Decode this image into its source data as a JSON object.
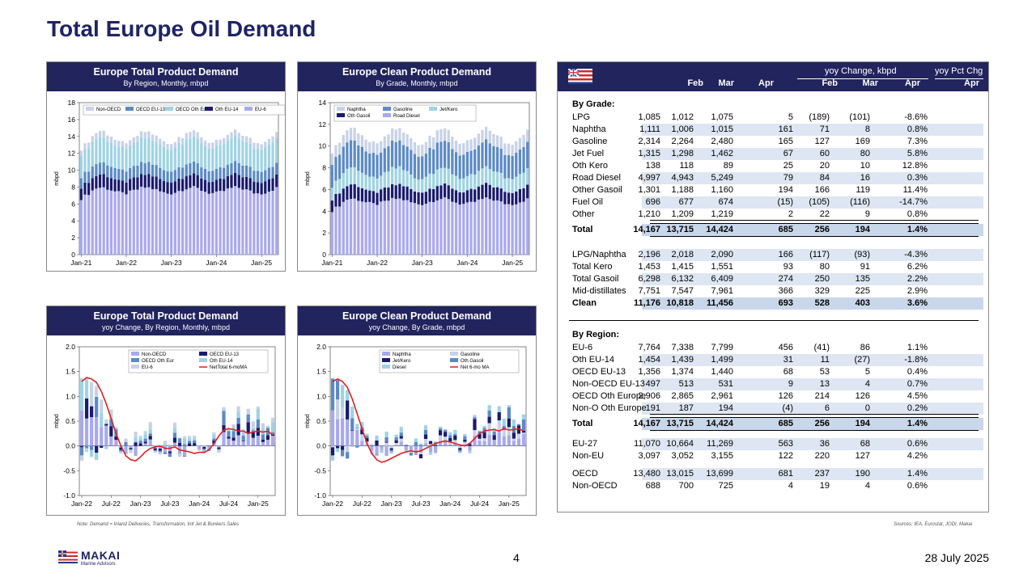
{
  "title": "Total Europe Oil Demand",
  "colors": {
    "navy": "#22245e",
    "red": "#e02020"
  },
  "charts": [
    {
      "id": "c1",
      "header": "Europe Total Product Demand",
      "subheader": "By Region, Monthly, mbpd",
      "chart_data": {
        "type": "bar",
        "stacked": true,
        "ylabel": "mbpd",
        "ylim": [
          0,
          18
        ],
        "yticks": [
          0,
          2,
          4,
          6,
          8,
          10,
          12,
          14,
          16,
          18
        ],
        "xticks": [
          "Jan-21",
          "Jan-22",
          "Jan-23",
          "Jan-24",
          "Jan-25"
        ],
        "n_months": 53,
        "legend": [
          "Non-OECD",
          "OECD EU-13",
          "OECD Oth Eur",
          "Oth EU-14",
          "EU-6"
        ],
        "series": [
          {
            "name": "EU-6",
            "color": "#a9a9ef",
            "base": 7.6,
            "amp": 0.35
          },
          {
            "name": "Oth EU-14",
            "color": "#1a1a6e",
            "base": 1.45,
            "amp": 0.08
          },
          {
            "name": "OECD EU-13",
            "color": "#5b8ac6",
            "base": 1.35,
            "amp": 0.06
          },
          {
            "name": "OECD Oth Eur",
            "color": "#9fd3e3",
            "base": 2.8,
            "amp": 0.15
          },
          {
            "name": "Non-OECD",
            "color": "#c7d2e8",
            "base": 0.7,
            "amp": 0.05
          }
        ]
      }
    },
    {
      "id": "c2",
      "header": "Europe Clean Product Demand",
      "subheader": "By Grade, Monthly, mbpd",
      "chart_data": {
        "type": "bar",
        "stacked": true,
        "ylabel": "mbpd",
        "ylim": [
          0,
          14
        ],
        "yticks": [
          0,
          2,
          4,
          6,
          8,
          10,
          12,
          14
        ],
        "xticks": [
          "Jan-21",
          "Jan-22",
          "Jan-23",
          "Jan-24",
          "Jan-25"
        ],
        "n_months": 53,
        "legend": [
          "Naphtha",
          "Gasoline",
          "Jet/Kero",
          "Oth Gasoil",
          "Road Diesel"
        ],
        "series": [
          {
            "name": "Road Diesel",
            "color": "#a9a9ef",
            "base": 4.9,
            "amp": 0.25
          },
          {
            "name": "Oth Gasoil",
            "color": "#1a1a6e",
            "base": 1.2,
            "amp": 0.1
          },
          {
            "name": "Jet/Kero",
            "color": "#9fd3e3",
            "base": 1.4,
            "amp": 0.15
          },
          {
            "name": "Gasoline",
            "color": "#5b8ac6",
            "base": 2.3,
            "amp": 0.15
          },
          {
            "name": "Naphtha",
            "color": "#c7d2e8",
            "base": 1.1,
            "amp": 0.05
          }
        ]
      }
    },
    {
      "id": "c3",
      "header": "Europe Total Product Demand",
      "subheader": "yoy Change, By Region, Monthly, mbpd",
      "chart_data": {
        "type": "bar",
        "stacked": true,
        "ylabel": "mbpd",
        "ylim": [
          -1.0,
          2.0
        ],
        "yticks": [
          -1.0,
          -0.5,
          0.0,
          0.5,
          1.0,
          1.5,
          2.0
        ],
        "xticks": [
          "Jan-22",
          "Jul-22",
          "Jan-23",
          "Jul-23",
          "Jan-24",
          "Jul-24",
          "Jan-25"
        ],
        "n_months": 40,
        "legend": [
          "Non-OECD",
          "OECD EU-13",
          "OECD Oth Eur",
          "Oth EU-14",
          "EU-6",
          "NetTotal 6-moMA"
        ],
        "line": [
          1.3,
          1.38,
          1.35,
          1.28,
          1.1,
          0.85,
          0.55,
          0.25,
          0.0,
          -0.2,
          -0.28,
          -0.3,
          -0.22,
          -0.12,
          -0.05,
          -0.02,
          0.0,
          -0.05,
          -0.05,
          -0.02,
          -0.08,
          -0.1,
          -0.12,
          -0.15,
          -0.13,
          -0.13,
          -0.08,
          0.05,
          0.2,
          0.32,
          0.35,
          0.33,
          0.3,
          0.3,
          0.25,
          0.28,
          0.3,
          0.28,
          0.3,
          0.22
        ]
      }
    },
    {
      "id": "c4",
      "header": "Europe Clean Product Demand",
      "subheader": "yoy Change, By Grade, mbpd",
      "chart_data": {
        "type": "bar",
        "stacked": true,
        "ylabel": "mbpd",
        "ylim": [
          -1.0,
          2.0
        ],
        "yticks": [
          -1.0,
          -0.5,
          0.0,
          0.5,
          1.0,
          1.5,
          2.0
        ],
        "xticks": [
          "Jan-22",
          "Jul-22",
          "Jan-23",
          "Jul-23",
          "Jan-24",
          "Jul-24",
          "Jan-25"
        ],
        "n_months": 40,
        "legend": [
          "Naphtha",
          "Gasoline",
          "Jet/Kero",
          "Oth Gasoil",
          "Diesel",
          "Net 6-mo MA"
        ],
        "line": [
          1.3,
          1.35,
          1.3,
          1.18,
          0.95,
          0.65,
          0.35,
          0.05,
          -0.15,
          -0.28,
          -0.33,
          -0.3,
          -0.25,
          -0.2,
          -0.15,
          -0.12,
          -0.1,
          -0.12,
          -0.1,
          -0.05,
          0.0,
          0.05,
          0.08,
          0.1,
          0.08,
          0.05,
          0.02,
          0.0,
          0.05,
          0.15,
          0.25,
          0.3,
          0.32,
          0.33,
          0.3,
          0.35,
          0.32,
          0.33,
          0.35,
          0.3
        ]
      }
    }
  ],
  "table": {
    "group_header_change": "yoy Change, kbpd",
    "group_header_pct": "yoy Pct Chg",
    "columns": [
      "Feb",
      "Mar",
      "Apr",
      "Feb",
      "Mar",
      "Apr",
      "Apr"
    ],
    "by_grade_label": "By Grade:",
    "grade_rows": [
      {
        "label": "LPG",
        "v": [
          "1,085",
          "1,012",
          "1,075",
          "5",
          "(189)",
          "(101)",
          "-8.6%"
        ]
      },
      {
        "label": "Naphtha",
        "v": [
          "1,111",
          "1,006",
          "1,015",
          "161",
          "71",
          "8",
          "0.8%"
        ]
      },
      {
        "label": "Gasoline",
        "v": [
          "2,314",
          "2,264",
          "2,480",
          "165",
          "127",
          "169",
          "7.3%"
        ]
      },
      {
        "label": "Jet Fuel",
        "v": [
          "1,315",
          "1,298",
          "1,462",
          "67",
          "60",
          "80",
          "5.8%"
        ]
      },
      {
        "label": "Oth Kero",
        "v": [
          "138",
          "118",
          "89",
          "25",
          "20",
          "10",
          "12.8%"
        ]
      },
      {
        "label": "Road Diesel",
        "v": [
          "4,997",
          "4,943",
          "5,249",
          "79",
          "84",
          "16",
          "0.3%"
        ]
      },
      {
        "label": "Other Gasoil",
        "v": [
          "1,301",
          "1,188",
          "1,160",
          "194",
          "166",
          "119",
          "11.4%"
        ]
      },
      {
        "label": "Fuel Oil",
        "v": [
          "696",
          "677",
          "674",
          "(15)",
          "(105)",
          "(116)",
          "-14.7%"
        ]
      },
      {
        "label": "Other",
        "v": [
          "1,210",
          "1,209",
          "1,219",
          "2",
          "22",
          "9",
          "0.8%"
        ]
      }
    ],
    "grade_total": {
      "label": "Total",
      "v": [
        "14,167",
        "13,715",
        "14,424",
        "685",
        "256",
        "194",
        "1.4%"
      ]
    },
    "clean_rows": [
      {
        "label": "LPG/Naphtha",
        "v": [
          "2,196",
          "2,018",
          "2,090",
          "166",
          "(117)",
          "(93)",
          "-4.3%"
        ]
      },
      {
        "label": "Total Kero",
        "v": [
          "1,453",
          "1,415",
          "1,551",
          "93",
          "80",
          "91",
          "6.2%"
        ]
      },
      {
        "label": "Total Gasoil",
        "v": [
          "6,298",
          "6,132",
          "6,409",
          "274",
          "250",
          "135",
          "2.2%"
        ]
      },
      {
        "label": "Mid-distillates",
        "v": [
          "7,751",
          "7,547",
          "7,961",
          "366",
          "329",
          "225",
          "2.9%"
        ]
      }
    ],
    "clean_total": {
      "label": "Clean",
      "v": [
        "11,176",
        "10,818",
        "11,456",
        "693",
        "528",
        "403",
        "3.6%"
      ]
    },
    "by_region_label": "By Region:",
    "region_rows": [
      {
        "label": "EU-6",
        "v": [
          "7,764",
          "7,338",
          "7,799",
          "456",
          "(41)",
          "86",
          "1.1%"
        ]
      },
      {
        "label": "Oth EU-14",
        "v": [
          "1,454",
          "1,439",
          "1,499",
          "31",
          "11",
          "(27)",
          "-1.8%"
        ]
      },
      {
        "label": "OECD EU-13",
        "v": [
          "1,356",
          "1,374",
          "1,440",
          "68",
          "53",
          "5",
          "0.4%"
        ]
      },
      {
        "label": "Non-OECD EU-13",
        "v": [
          "497",
          "513",
          "531",
          "9",
          "13",
          "4",
          "0.7%"
        ]
      },
      {
        "label": "OECD Oth Europe",
        "v": [
          "2,906",
          "2,865",
          "2,961",
          "126",
          "214",
          "126",
          "4.5%"
        ]
      },
      {
        "label": "Non-O Oth Europe",
        "v": [
          "191",
          "187",
          "194",
          "(4)",
          "6",
          "0",
          "0.2%"
        ]
      }
    ],
    "region_total": {
      "label": "Total",
      "v": [
        "14,167",
        "13,715",
        "14,424",
        "685",
        "256",
        "194",
        "1.4%"
      ]
    },
    "eu_rows": [
      {
        "label": "EU-27",
        "v": [
          "11,070",
          "10,664",
          "11,269",
          "563",
          "36",
          "68",
          "0.6%"
        ]
      },
      {
        "label": "Non-EU",
        "v": [
          "3,097",
          "3,052",
          "3,155",
          "122",
          "220",
          "127",
          "4.2%"
        ]
      }
    ],
    "oecd_rows": [
      {
        "label": "OECD",
        "v": [
          "13,480",
          "13,015",
          "13,699",
          "681",
          "237",
          "190",
          "1.4%"
        ]
      },
      {
        "label": "Non-OECD",
        "v": [
          "688",
          "700",
          "725",
          "4",
          "19",
          "4",
          "0.6%"
        ]
      }
    ]
  },
  "note_left": "Note: Demand = Inland Deliveries, Transformation, Intl Jet & Bunkers Sales",
  "note_right": "Sources: IEA, Eurostat, JODI, Makai",
  "footer": {
    "page": "4",
    "date": "28 July 2025",
    "logo_name": "MAKAI",
    "logo_sub": "Marine Advisors"
  }
}
